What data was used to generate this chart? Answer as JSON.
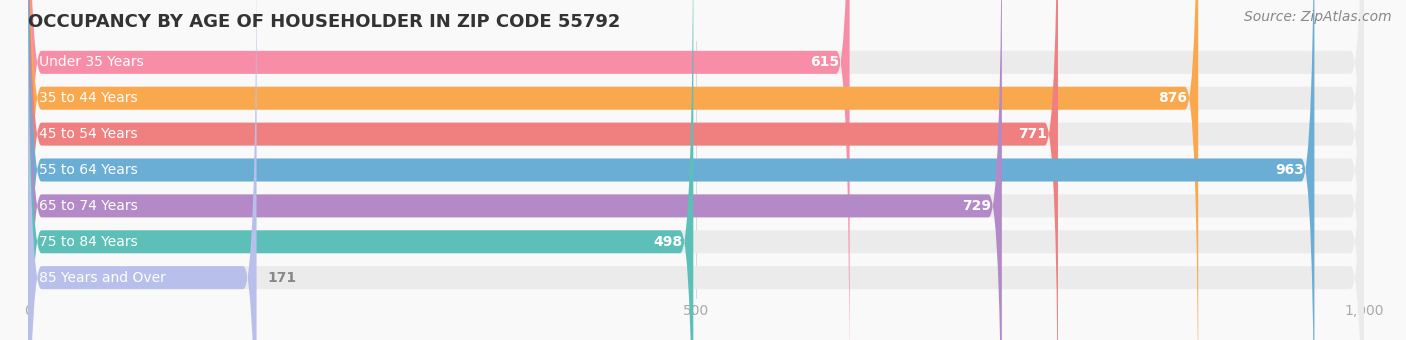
{
  "title": "OCCUPANCY BY AGE OF HOUSEHOLDER IN ZIP CODE 55792",
  "source": "Source: ZipAtlas.com",
  "categories": [
    "Under 35 Years",
    "35 to 44 Years",
    "45 to 54 Years",
    "55 to 64 Years",
    "65 to 74 Years",
    "75 to 84 Years",
    "85 Years and Over"
  ],
  "values": [
    615,
    876,
    771,
    963,
    729,
    498,
    171
  ],
  "bar_colors": [
    "#F78DA7",
    "#F9A84D",
    "#F08080",
    "#6aaed6",
    "#B389C8",
    "#5DC0B8",
    "#B8BFEA"
  ],
  "bar_bg_color": "#EBEBEB",
  "xlim": [
    0,
    1000
  ],
  "xticks": [
    0,
    500,
    1000
  ],
  "title_fontsize": 13,
  "label_fontsize": 10,
  "value_fontsize": 10,
  "source_fontsize": 10,
  "bg_color": "#F9F9F9",
  "bar_height": 0.62,
  "label_text_color": "#555555",
  "value_color_inside": "#ffffff",
  "value_color_outside": "#888888",
  "tick_color": "#aaaaaa"
}
